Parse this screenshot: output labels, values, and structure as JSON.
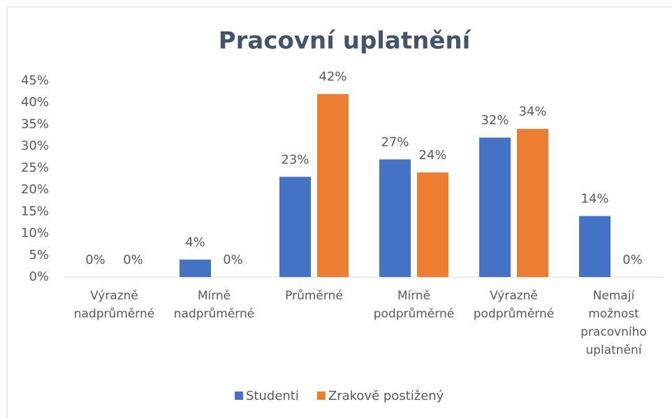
{
  "chart_data": {
    "type": "bar",
    "title": "Pracovní uplatnění",
    "categories": [
      "Výrazně nadprůměrné",
      "Mírně nadprůměrné",
      "Průměrné",
      "Mírně podprůměrné",
      "Výrazně podprůměrné",
      "Nemají možnost pracovního uplatnění"
    ],
    "series": [
      {
        "name": "Studenti",
        "color": "#4472c4",
        "values": [
          0,
          4,
          23,
          27,
          32,
          14
        ],
        "value_labels": [
          "0%",
          "4%",
          "23%",
          "27%",
          "32%",
          "14%"
        ]
      },
      {
        "name": "Zrakově postižený",
        "color": "#ed7d31",
        "values": [
          0,
          0,
          42,
          24,
          34,
          0
        ],
        "value_labels": [
          "0%",
          "0%",
          "42%",
          "24%",
          "34%",
          "0%"
        ]
      }
    ],
    "ylim": [
      0,
      45
    ],
    "yticks": [
      {
        "value": 0,
        "label": "0%"
      },
      {
        "value": 5,
        "label": "5%"
      },
      {
        "value": 10,
        "label": "10%"
      },
      {
        "value": 15,
        "label": "15%"
      },
      {
        "value": 20,
        "label": "20%"
      },
      {
        "value": 25,
        "label": "25%"
      },
      {
        "value": 30,
        "label": "30%"
      },
      {
        "value": 35,
        "label": "35%"
      },
      {
        "value": 40,
        "label": "40%"
      },
      {
        "value": 45,
        "label": "45%"
      }
    ],
    "grid": false,
    "legend": "bottom"
  }
}
